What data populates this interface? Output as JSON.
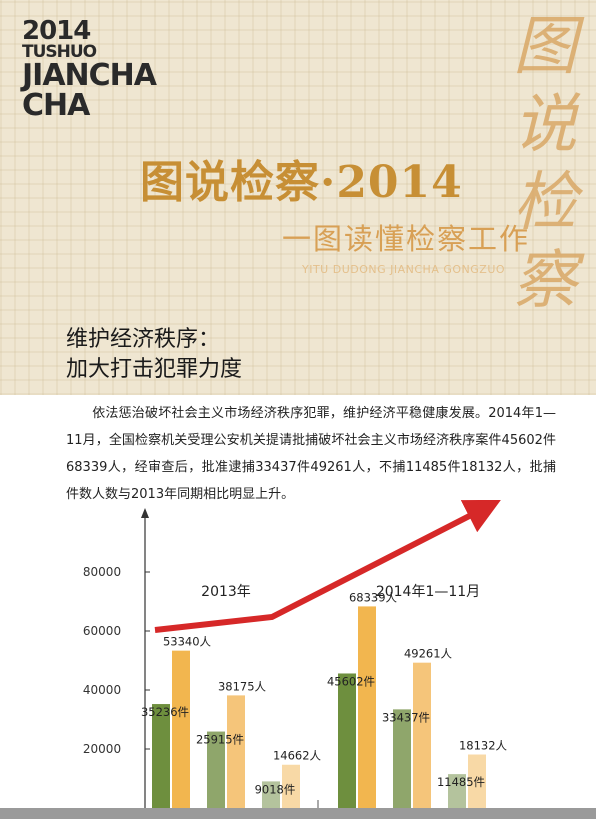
{
  "header": {
    "logo_lines": [
      "2014",
      "TUSHUO",
      "JIANCHA",
      "CHA"
    ],
    "main_title": "图说检察·2014",
    "sub_title": "一图读懂检察工作",
    "pinyin": "YITU DUDONG JIANCHA  GONGZUO",
    "calligraphy": "图说检察"
  },
  "section": {
    "heading_line1": "维护经济秩序：",
    "heading_line2": "加大打击犯罪力度"
  },
  "body": {
    "paragraph": "依法惩治破坏社会主义市场经济秩序犯罪，维护经济平稳健康发展。2014年1—11月，全国检察机关受理公安机关提请批捕破坏社会主义市场经济秩序案件45602件68339人，经审查后，批准逮捕33437件49261人，不捕11485件18132人，批捕件数人数与2013年同期相比明显上升。"
  },
  "chart_data": {
    "type": "bar",
    "ylim": [
      0,
      85000
    ],
    "yticks": [
      20000,
      40000,
      60000,
      80000
    ],
    "groups": [
      {
        "label": "2013年",
        "pairs": [
          {
            "cases": 35236,
            "cases_label": "35236件",
            "persons": 53340,
            "persons_label": "53340人",
            "colors": [
              "#6e8f3e",
              "#f2b64f"
            ]
          },
          {
            "cases": 25915,
            "cases_label": "25915件",
            "persons": 38175,
            "persons_label": "38175人",
            "colors": [
              "#8fa66b",
              "#f5c57a"
            ]
          },
          {
            "cases": 9018,
            "cases_label": "9018件",
            "persons": 14662,
            "persons_label": "14662人",
            "colors": [
              "#b4c39d",
              "#f8d9a6"
            ]
          }
        ]
      },
      {
        "label": "2014年1—11月",
        "pairs": [
          {
            "cases": 45602,
            "cases_label": "45602件",
            "persons": 68339,
            "persons_label": "68339人",
            "colors": [
              "#6e8f3e",
              "#f2b64f"
            ]
          },
          {
            "cases": 33437,
            "cases_label": "33437件",
            "persons": 49261,
            "persons_label": "49261人",
            "colors": [
              "#8fa66b",
              "#f5c57a"
            ]
          },
          {
            "cases": 11485,
            "cases_label": "11485件",
            "persons": 18132,
            "persons_label": "18132人",
            "colors": [
              "#b4c39d",
              "#f8d9a6"
            ]
          }
        ]
      }
    ],
    "trend_color": "#d62828"
  }
}
